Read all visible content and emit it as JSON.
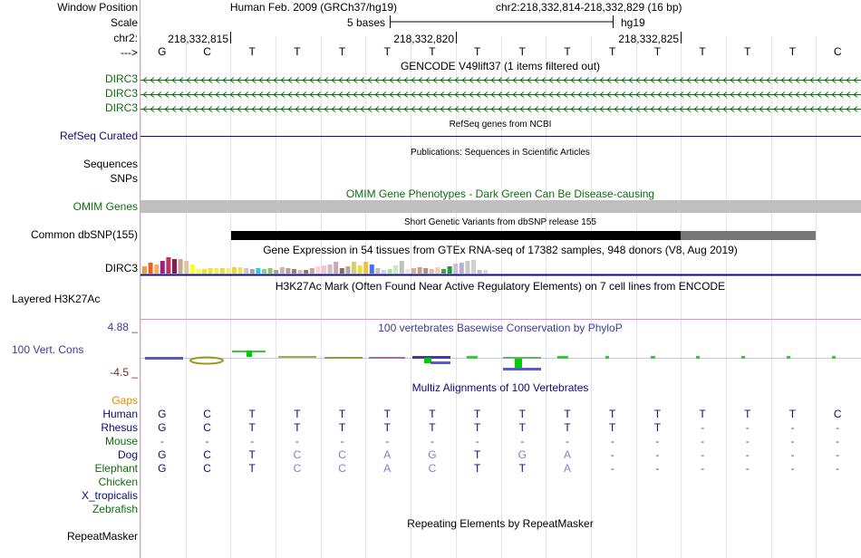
{
  "header": {
    "window_position_label": "Window Position",
    "scale_label": "Scale",
    "chr_label": "chr2:",
    "strand_label": "--->",
    "assembly": "Human Feb. 2009 (GRCh37/hg19)",
    "position": "chr2:218,332,814-218,332,829 (16 bp)",
    "scale_text": "5 bases",
    "db": "hg19",
    "ticks": [
      "218,332,815",
      "218,332,820",
      "218,332,825"
    ]
  },
  "sequence": [
    "G",
    "C",
    "T",
    "T",
    "T",
    "T",
    "T",
    "T",
    "T",
    "T",
    "T",
    "T",
    "T",
    "T",
    "T",
    "C"
  ],
  "tracks": {
    "gencode": {
      "title": "GENCODE V49lift37 (1 items filtered out)",
      "labels": [
        "DIRC3",
        "DIRC3",
        "DIRC3"
      ]
    },
    "refseq": {
      "title": "RefSeq genes from NCBI",
      "label": "RefSeq Curated"
    },
    "pubs": {
      "title": "Publications: Sequences in Scientific Articles",
      "labels": [
        "Sequences",
        "SNPs"
      ]
    },
    "omim": {
      "title": "OMIM Gene Phenotypes - Dark Green Can Be Disease-causing",
      "label": "OMIM Genes"
    },
    "dbsnp": {
      "title": "Short Genetic Variants from dbSNP release 155",
      "label": "Common dbSNP(155)"
    },
    "gtex": {
      "title": "Gene Expression in 54 tissues from GTEx RNA-seq of 17382 samples, 948 donors (V8, Aug 2019)",
      "label": "DIRC3"
    },
    "h3k27ac": {
      "title": "H3K27Ac Mark (Often Found Near Active Regulatory Elements) on 7 cell lines from ENCODE",
      "label": "Layered H3K27Ac"
    },
    "phylop": {
      "title": "100 vertebrates Basewise Conservation by PhyloP",
      "label": "100 Vert. Cons",
      "max_label": "4.88 _",
      "min_label": "-4.5 _"
    },
    "multiz": {
      "title": "Multiz Alignments of 100 Vertebrates",
      "gaps_label": "Gaps",
      "species": [
        {
          "name": "Human",
          "seq": [
            "G",
            "C",
            "T",
            "T",
            "T",
            "T",
            "T",
            "T",
            "T",
            "T",
            "T",
            "T",
            "T",
            "T",
            "T",
            "C"
          ]
        },
        {
          "name": "Rhesus",
          "seq": [
            "G",
            "C",
            "T",
            "T",
            "T",
            "T",
            "T",
            "T",
            "T",
            "T",
            "T",
            "T",
            "-",
            "-",
            "-",
            "-"
          ]
        },
        {
          "name": "Mouse",
          "seq": [
            "-",
            "-",
            "-",
            "-",
            "-",
            "-",
            "-",
            "-",
            "-",
            "-",
            "-",
            "-",
            "-",
            "-",
            "-",
            "-"
          ]
        },
        {
          "name": "Dog",
          "seq": [
            "G",
            "C",
            "T",
            "C",
            "C",
            "A",
            "G",
            "T",
            "G",
            "A",
            "-",
            "-",
            "-",
            "-",
            "-",
            "-"
          ]
        },
        {
          "name": "Elephant",
          "seq": [
            "G",
            "C",
            "T",
            "C",
            "C",
            "A",
            "C",
            "T",
            "T",
            "A",
            "-",
            "-",
            "-",
            "-",
            "-",
            "-"
          ]
        },
        {
          "name": "Chicken",
          "seq": []
        },
        {
          "name": "X_tropicalis",
          "seq": []
        },
        {
          "name": "Zebrafish",
          "seq": []
        }
      ]
    },
    "rmsk": {
      "title": "Repeating Elements by RepeatMasker",
      "label": "RepeatMasker"
    }
  },
  "colors": {
    "gencode": "#0e6e0e",
    "refseq": "#0c0c78",
    "omim": "#0e6e0e",
    "phylop": "#3c3c96",
    "multiz": "#0c0c78",
    "gaps": "#e08a00",
    "mismatch": "#8080c0",
    "h3k27ac_line": "#e38ec9"
  }
}
